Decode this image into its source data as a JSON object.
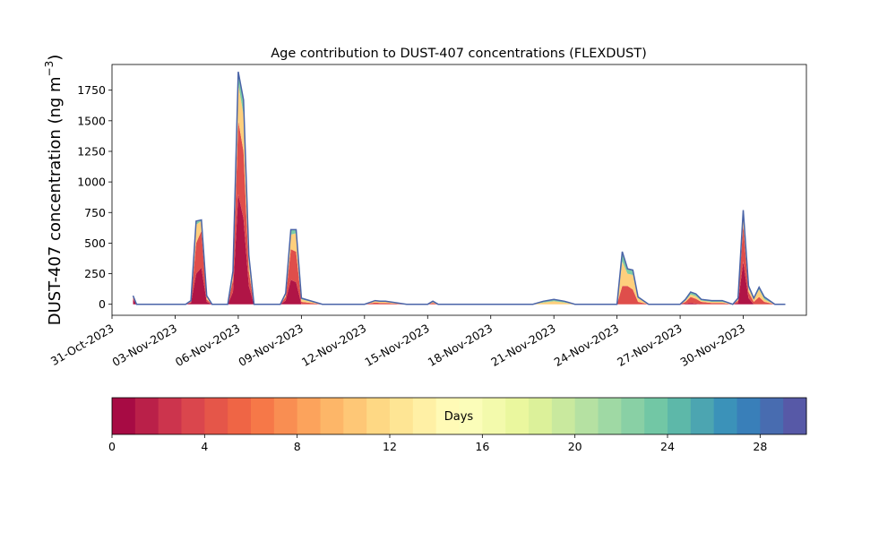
{
  "chart_data": [
    {
      "type": "area",
      "title": "Age contribution to DUST-407 concentrations (FLEXDUST)",
      "xlabel": "",
      "ylabel": "DUST-407 concentration (ng m",
      "ylabel_sup": "−3",
      "ylabel_close": ")",
      "stacked": true,
      "x_unit": "date",
      "xlim": [
        "2023-10-31T00:00",
        "2023-12-03T00:00"
      ],
      "ylim": [
        -90,
        1960
      ],
      "y_ticks": [
        0,
        250,
        500,
        750,
        1000,
        1250,
        1500,
        1750
      ],
      "x_ticks": [
        {
          "date": "2023-10-31",
          "label": "31-Oct-2023"
        },
        {
          "date": "2023-11-03",
          "label": "03-Nov-2023"
        },
        {
          "date": "2023-11-06",
          "label": "06-Nov-2023"
        },
        {
          "date": "2023-11-09",
          "label": "09-Nov-2023"
        },
        {
          "date": "2023-11-12",
          "label": "12-Nov-2023"
        },
        {
          "date": "2023-11-15",
          "label": "15-Nov-2023"
        },
        {
          "date": "2023-11-18",
          "label": "18-Nov-2023"
        },
        {
          "date": "2023-11-21",
          "label": "21-Nov-2023"
        },
        {
          "date": "2023-11-24",
          "label": "24-Nov-2023"
        },
        {
          "date": "2023-11-27",
          "label": "27-Nov-2023"
        },
        {
          "date": "2023-11-30",
          "label": "30-Nov-2023"
        }
      ],
      "x": [
        "2023-11-01T00:00",
        "2023-11-01T04:00",
        "2023-11-01T12:00",
        "2023-11-02T00:00",
        "2023-11-02T12:00",
        "2023-11-03T00:00",
        "2023-11-03T12:00",
        "2023-11-03T18:00",
        "2023-11-04T00:00",
        "2023-11-04T06:00",
        "2023-11-04T12:00",
        "2023-11-04T18:00",
        "2023-11-05T00:00",
        "2023-11-05T12:00",
        "2023-11-05T18:00",
        "2023-11-06T00:00",
        "2023-11-06T06:00",
        "2023-11-06T12:00",
        "2023-11-06T18:00",
        "2023-11-07T00:00",
        "2023-11-07T12:00",
        "2023-11-08T00:00",
        "2023-11-08T06:00",
        "2023-11-08T12:00",
        "2023-11-08T18:00",
        "2023-11-09T00:00",
        "2023-11-10T00:00",
        "2023-11-11T00:00",
        "2023-11-12T00:00",
        "2023-11-12T12:00",
        "2023-11-12T18:00",
        "2023-11-13T00:00",
        "2023-11-14T00:00",
        "2023-11-15T00:00",
        "2023-11-15T06:00",
        "2023-11-15T12:00",
        "2023-11-16T00:00",
        "2023-11-17T00:00",
        "2023-11-18T00:00",
        "2023-11-19T00:00",
        "2023-11-20T00:00",
        "2023-11-20T12:00",
        "2023-11-21T00:00",
        "2023-11-21T12:00",
        "2023-11-22T00:00",
        "2023-11-23T00:00",
        "2023-11-23T18:00",
        "2023-11-24T00:00",
        "2023-11-24T06:00",
        "2023-11-24T12:00",
        "2023-11-24T18:00",
        "2023-11-25T00:00",
        "2023-11-25T12:00",
        "2023-11-26T00:00",
        "2023-11-26T12:00",
        "2023-11-27T00:00",
        "2023-11-27T06:00",
        "2023-11-27T12:00",
        "2023-11-27T18:00",
        "2023-11-28T00:00",
        "2023-11-28T12:00",
        "2023-11-29T00:00",
        "2023-11-29T12:00",
        "2023-11-29T18:00",
        "2023-11-30T00:00",
        "2023-11-30T06:00",
        "2023-11-30T12:00",
        "2023-11-30T18:00",
        "2023-12-01T00:00",
        "2023-12-01T12:00",
        "2023-12-02T00:00"
      ],
      "series": [
        {
          "age_days": [
            0,
            2
          ],
          "values": [
            40,
            0,
            0,
            0,
            0,
            0,
            0,
            10,
            250,
            300,
            20,
            0,
            0,
            0,
            100,
            900,
            700,
            150,
            0,
            0,
            0,
            0,
            30,
            200,
            180,
            0,
            0,
            0,
            0,
            0,
            0,
            0,
            0,
            0,
            0,
            0,
            0,
            0,
            0,
            0,
            0,
            0,
            0,
            0,
            0,
            0,
            0,
            0,
            0,
            0,
            0,
            0,
            0,
            0,
            0,
            0,
            5,
            10,
            5,
            0,
            0,
            0,
            0,
            10,
            350,
            50,
            0,
            0,
            0,
            0,
            0
          ]
        },
        {
          "age_days": [
            2,
            6
          ],
          "values": [
            20,
            0,
            0,
            0,
            0,
            0,
            0,
            10,
            250,
            300,
            20,
            0,
            0,
            0,
            100,
            600,
            550,
            120,
            0,
            0,
            0,
            0,
            30,
            250,
            250,
            20,
            0,
            0,
            0,
            15,
            10,
            10,
            0,
            0,
            10,
            0,
            0,
            0,
            0,
            0,
            0,
            0,
            0,
            0,
            0,
            0,
            0,
            0,
            150,
            150,
            120,
            20,
            0,
            0,
            0,
            0,
            15,
            50,
            40,
            20,
            10,
            10,
            0,
            20,
            300,
            50,
            20,
            60,
            20,
            0,
            0
          ]
        },
        {
          "age_days": [
            6,
            16
          ],
          "values": [
            10,
            0,
            0,
            0,
            0,
            0,
            0,
            5,
            150,
            80,
            20,
            0,
            0,
            0,
            50,
            300,
            300,
            100,
            0,
            0,
            0,
            0,
            20,
            120,
            150,
            20,
            0,
            0,
            0,
            10,
            10,
            10,
            0,
            0,
            10,
            0,
            0,
            0,
            0,
            0,
            0,
            15,
            25,
            15,
            0,
            0,
            0,
            0,
            200,
            100,
            120,
            30,
            0,
            0,
            0,
            0,
            10,
            20,
            20,
            10,
            10,
            10,
            0,
            10,
            80,
            30,
            20,
            60,
            20,
            0,
            0
          ]
        },
        {
          "age_days": [
            16,
            30
          ],
          "values": [
            0,
            0,
            0,
            0,
            0,
            0,
            0,
            5,
            30,
            10,
            10,
            0,
            0,
            0,
            20,
            100,
            120,
            30,
            0,
            0,
            0,
            0,
            10,
            40,
            30,
            10,
            0,
            0,
            0,
            5,
            5,
            5,
            0,
            0,
            5,
            0,
            0,
            0,
            0,
            0,
            0,
            10,
            15,
            10,
            0,
            0,
            0,
            0,
            80,
            40,
            40,
            10,
            0,
            0,
            0,
            0,
            10,
            20,
            20,
            10,
            10,
            10,
            0,
            10,
            40,
            20,
            10,
            20,
            20,
            0,
            0
          ]
        }
      ]
    },
    {
      "type": "colorbar",
      "label": "Days",
      "range": [
        0,
        30
      ],
      "bins": 30,
      "ticks": [
        0,
        4,
        8,
        12,
        16,
        20,
        24,
        28
      ],
      "colormap": [
        "#9e0142",
        "#d53e4f",
        "#f46d43",
        "#fdae61",
        "#fee08b",
        "#ffffbf",
        "#e6f598",
        "#abdda4",
        "#66c2a5",
        "#3288bd",
        "#5e4fa2"
      ]
    }
  ]
}
